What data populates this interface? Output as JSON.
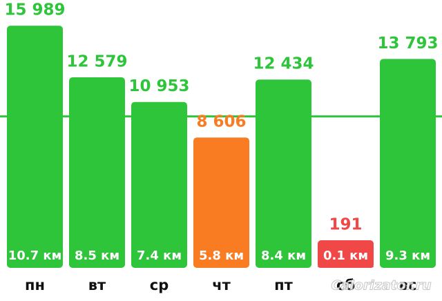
{
  "chart_data": {
    "type": "bar",
    "categories": [
      "пн",
      "вт",
      "ср",
      "чт",
      "пт",
      "сб",
      "вс"
    ],
    "values": [
      15989,
      12579,
      10953,
      8606,
      12434,
      191,
      13793
    ],
    "value_labels": [
      "15 989",
      "12 579",
      "10 953",
      "8 606",
      "12 434",
      "191",
      "13 793"
    ],
    "distance_labels": [
      "10.7 км",
      "8.5 км",
      "7.4 км",
      "5.8 км",
      "8.4 км",
      "0.1 км",
      "9.3 км"
    ],
    "colors": [
      "#2ec53b",
      "#2ec53b",
      "#2ec53b",
      "#f97b22",
      "#2ec53b",
      "#f04747",
      "#2ec53b"
    ],
    "reference_line": 10000,
    "reference_color": "#2ec53b",
    "ylim": [
      0,
      16000
    ],
    "watermark": "Calorizator.ru"
  }
}
